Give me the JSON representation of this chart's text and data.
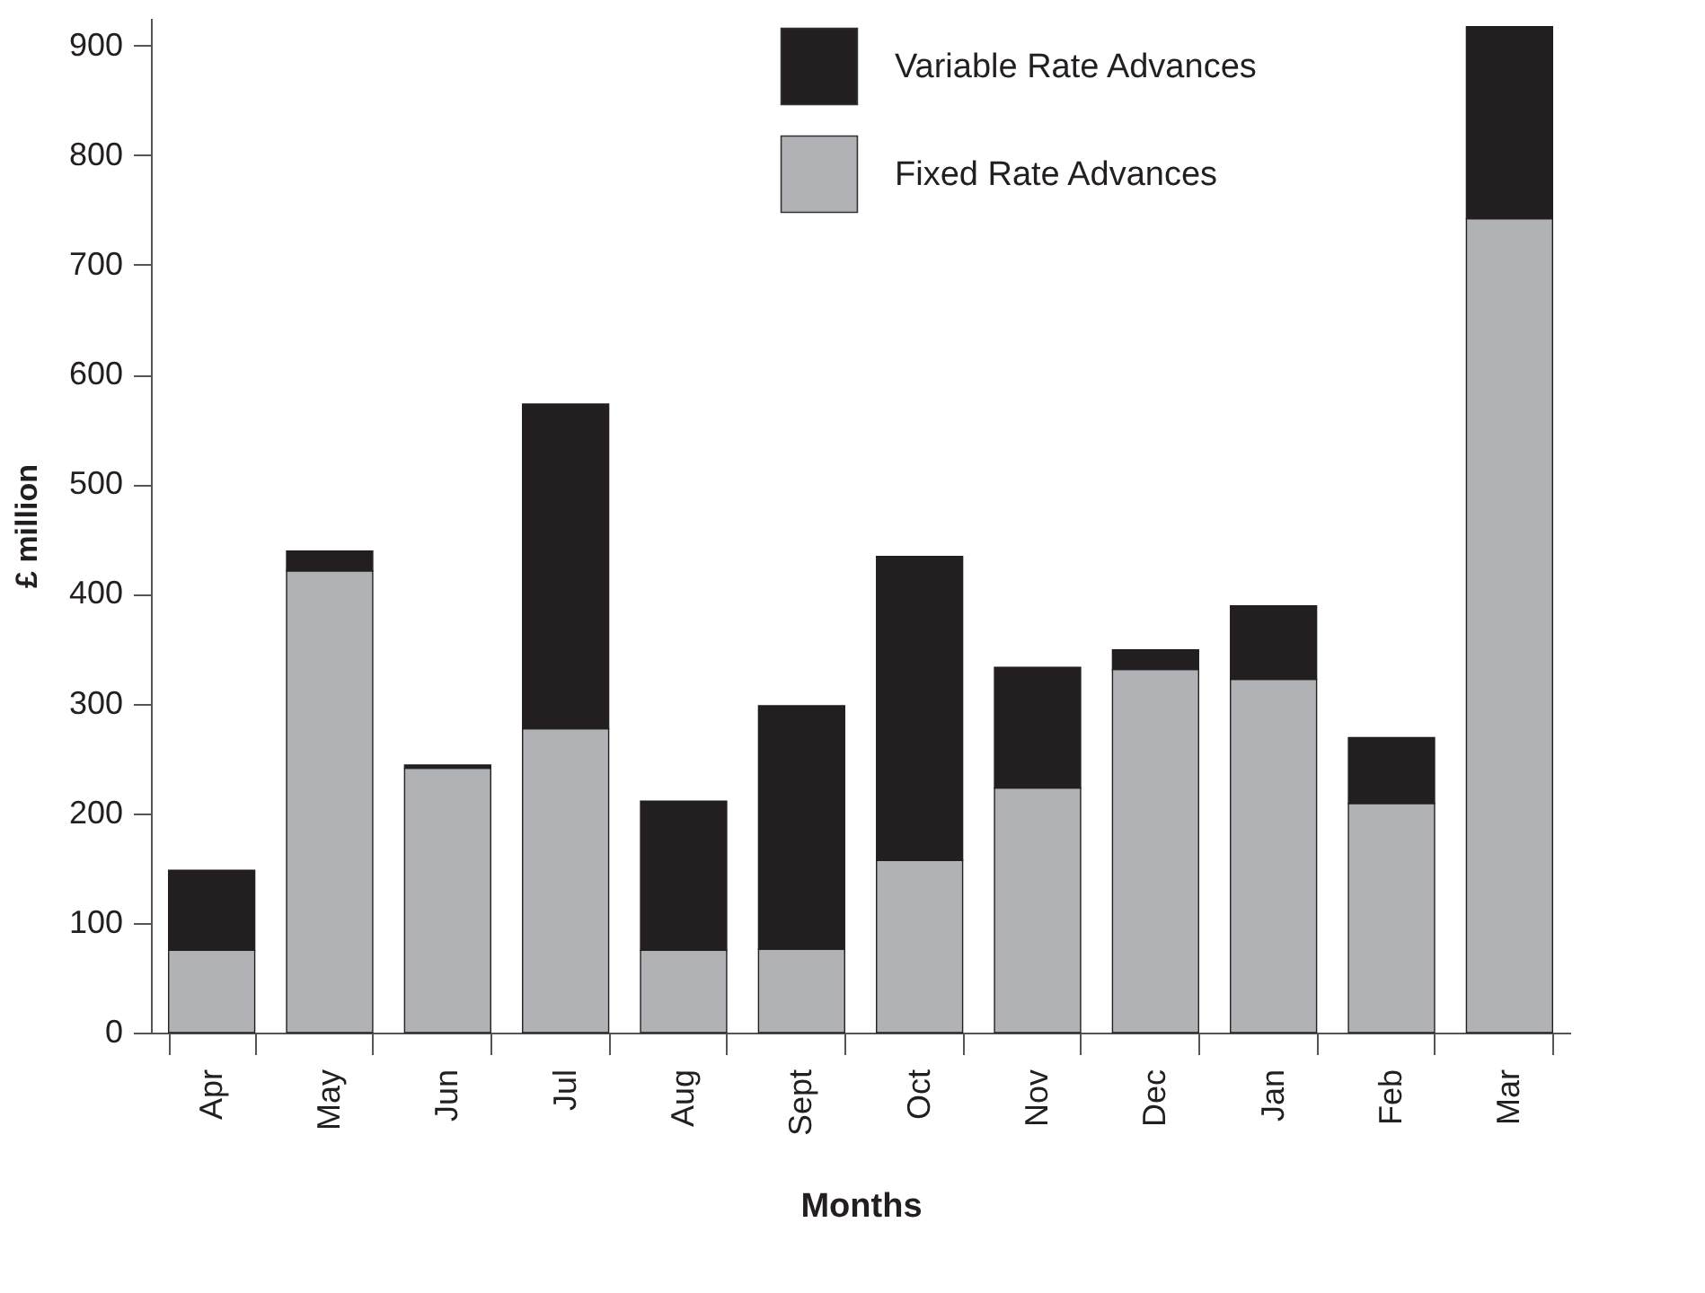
{
  "chart_data": {
    "type": "bar",
    "stacked": true,
    "xlabel": "Months",
    "ylabel": "£ million",
    "categories": [
      "Apr",
      "May",
      "Jun",
      "Jul",
      "Aug",
      "Sept",
      "Oct",
      "Nov",
      "Dec",
      "Jan",
      "Feb",
      "Mar"
    ],
    "series": [
      {
        "name": "Fixed Rate Advances",
        "color": "#b1b2b5",
        "values": [
          75,
          421,
          241,
          277,
          75,
          76,
          157,
          223,
          331,
          322,
          209,
          742
        ]
      },
      {
        "name": "Variable Rate Advances",
        "color": "#231f20",
        "values": [
          73,
          18,
          3,
          296,
          136,
          222,
          277,
          110,
          18,
          67,
          60,
          175
        ]
      }
    ],
    "ylim": [
      0,
      925
    ],
    "yticks": [
      0,
      100,
      200,
      300,
      400,
      500,
      600,
      700,
      800,
      900
    ],
    "grid": false,
    "legend": "top right"
  }
}
